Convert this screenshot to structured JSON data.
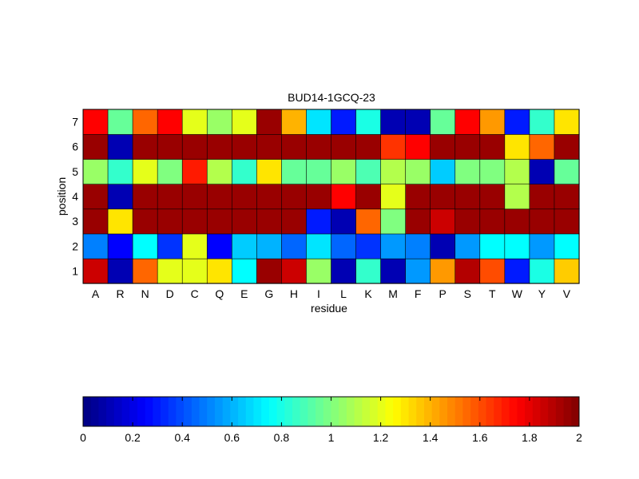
{
  "chart_data": [
    {
      "type": "heatmap",
      "title": "BUD14-1GCQ-23",
      "xlabel": "residue",
      "ylabel": "position",
      "x_categories": [
        "A",
        "R",
        "N",
        "D",
        "C",
        "Q",
        "E",
        "G",
        "H",
        "I",
        "L",
        "K",
        "M",
        "F",
        "P",
        "S",
        "T",
        "W",
        "Y",
        "V"
      ],
      "y_categories": [
        "1",
        "2",
        "3",
        "4",
        "5",
        "6",
        "7"
      ],
      "value_range": [
        0,
        2
      ],
      "colormap": "jet",
      "values": [
        [
          1.85,
          0.1,
          1.55,
          1.2,
          1.2,
          1.3,
          0.75,
          1.95,
          1.85,
          1.05,
          0.1,
          0.85,
          0.1,
          0.55,
          1.45,
          1.9,
          1.6,
          0.3,
          0.8,
          1.35
        ],
        [
          0.5,
          0.25,
          0.75,
          0.35,
          1.2,
          0.25,
          0.65,
          0.6,
          0.45,
          0.7,
          0.45,
          0.35,
          0.55,
          0.5,
          0.1,
          0.55,
          0.75,
          0.75,
          0.55,
          0.75
        ],
        [
          1.95,
          1.3,
          1.95,
          1.95,
          1.95,
          1.95,
          1.95,
          1.95,
          1.95,
          0.3,
          0.1,
          1.55,
          1.0,
          1.95,
          1.85,
          1.95,
          1.95,
          1.95,
          1.95,
          1.95
        ],
        [
          1.95,
          0.1,
          1.95,
          1.95,
          1.95,
          1.95,
          1.95,
          1.95,
          1.95,
          1.95,
          1.75,
          1.95,
          1.2,
          1.95,
          1.95,
          1.95,
          1.95,
          1.1,
          1.95,
          1.95
        ],
        [
          1.05,
          0.85,
          1.2,
          1.0,
          1.7,
          1.1,
          0.85,
          1.3,
          0.95,
          0.95,
          1.05,
          0.9,
          1.1,
          1.05,
          0.65,
          1.0,
          1.0,
          1.1,
          0.1,
          0.95
        ],
        [
          1.95,
          0.1,
          1.95,
          1.95,
          1.95,
          1.95,
          1.95,
          1.95,
          1.95,
          1.95,
          1.95,
          1.95,
          1.65,
          1.75,
          1.95,
          1.95,
          1.95,
          1.3,
          1.55,
          1.95
        ],
        [
          1.75,
          0.95,
          1.55,
          1.75,
          1.2,
          1.05,
          1.2,
          1.95,
          1.4,
          0.7,
          0.3,
          0.8,
          0.1,
          0.1,
          0.95,
          1.75,
          1.45,
          0.3,
          0.85,
          1.3
        ]
      ]
    },
    {
      "type": "colorbar",
      "ticks": [
        "0",
        "0.2",
        "0.4",
        "0.6",
        "0.8",
        "1",
        "1.2",
        "1.4",
        "1.6",
        "1.8",
        "2"
      ],
      "range": [
        0,
        2
      ],
      "colormap": "jet",
      "levels": 64
    }
  ]
}
